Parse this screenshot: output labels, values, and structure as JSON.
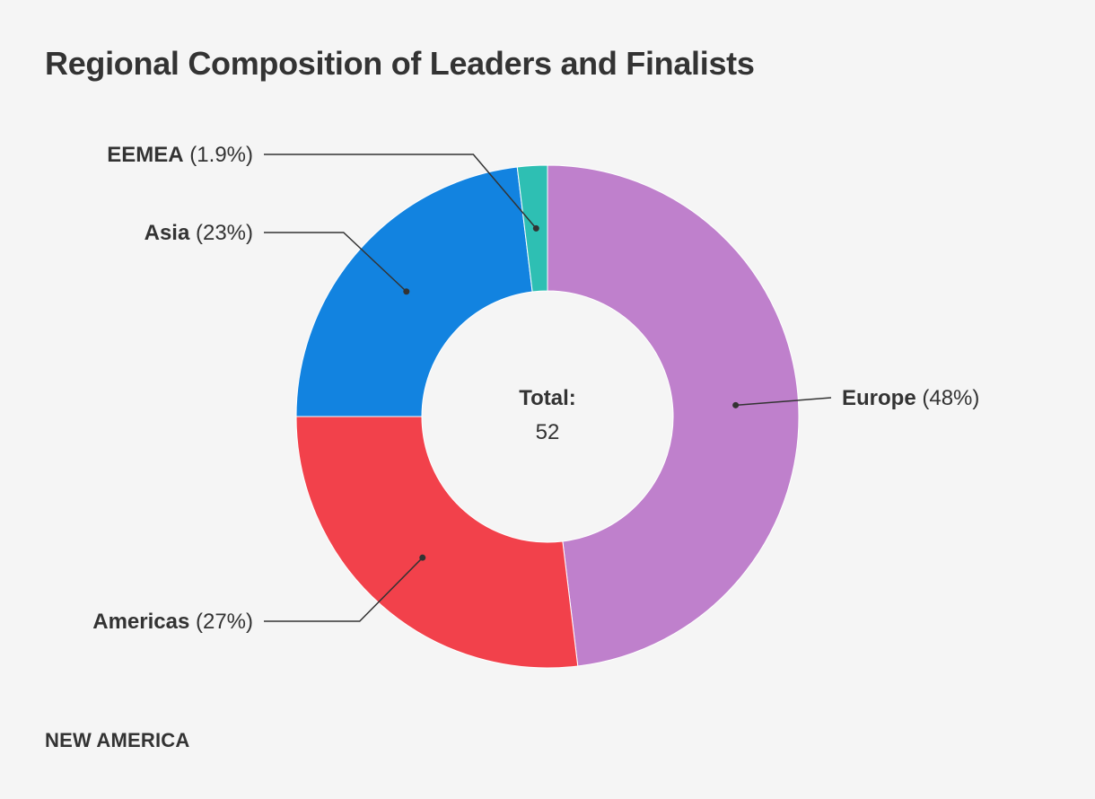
{
  "chart_data": {
    "type": "pie",
    "donut": true,
    "title": "Regional Composition of Leaders and Finalists",
    "center_label": "Total:",
    "total": 52,
    "slices": [
      {
        "name": "Europe",
        "value": 25,
        "percent_label": "(48%)",
        "color": "#bf80cc"
      },
      {
        "name": "Americas",
        "value": 14,
        "percent_label": "(27%)",
        "color": "#f2414b"
      },
      {
        "name": "Asia",
        "value": 12,
        "percent_label": "(23%)",
        "color": "#1283e0"
      },
      {
        "name": "EEMEA",
        "value": 1,
        "percent_label": "(1.9%)",
        "color": "#2ebfb3"
      }
    ],
    "legend": "none"
  },
  "footer": {
    "brand": "NEW AMERICA"
  },
  "colors": {
    "background": "#f5f5f5",
    "text": "#333333",
    "leader_line": "#333333"
  }
}
